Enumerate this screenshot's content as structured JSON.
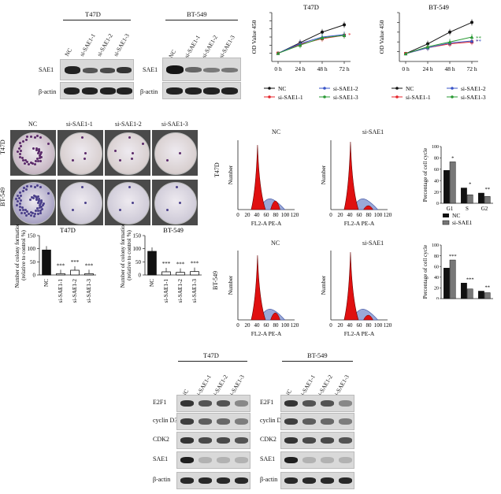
{
  "panelA": {
    "t47d": {
      "title": "T47D",
      "lanes": [
        "NC",
        "si-SAE1-1",
        "si-SAE1-2",
        "si-SAE1-3"
      ],
      "rows": [
        "SAE1",
        "β-actin"
      ]
    },
    "bt549": {
      "title": "BT-549",
      "lanes": [
        "NC",
        "si-SAE1-1",
        "si-SAE1-2",
        "si-SAE1-3"
      ],
      "rows": [
        "SAE1",
        "β-actin"
      ]
    }
  },
  "panelB": {
    "t47d_title": "T47D",
    "bt549_title": "BT-549",
    "ylabel": "OD Value 450",
    "xticks": [
      "0 h",
      "24 h",
      "48 h",
      "72 h"
    ],
    "legend": [
      "NC",
      "si-SAE1-1",
      "si-SAE1-2",
      "si-SAE1-3"
    ],
    "sig_t47d": "*",
    "sig_bt549": [
      "*",
      "**",
      "**"
    ]
  },
  "chart_data": [
    {
      "type": "line",
      "title": "T47D",
      "ylabel": "OD Value 450",
      "categories": [
        "0 h",
        "24 h",
        "48 h",
        "72 h"
      ],
      "ylim": [
        0,
        0.6
      ],
      "series": [
        {
          "name": "NC",
          "values": [
            0.1,
            0.23,
            0.36,
            0.45
          ]
        },
        {
          "name": "si-SAE1-1",
          "values": [
            0.1,
            0.21,
            0.28,
            0.32
          ]
        },
        {
          "name": "si-SAE1-2",
          "values": [
            0.1,
            0.22,
            0.3,
            0.33
          ]
        },
        {
          "name": "si-SAE1-3",
          "values": [
            0.1,
            0.2,
            0.29,
            0.32
          ]
        }
      ]
    },
    {
      "type": "line",
      "title": "BT-549",
      "ylabel": "OD Value 450",
      "categories": [
        "0 h",
        "24 h",
        "48 h",
        "72 h"
      ],
      "ylim": [
        0,
        0.5
      ],
      "series": [
        {
          "name": "NC",
          "values": [
            0.08,
            0.18,
            0.3,
            0.4
          ]
        },
        {
          "name": "si-SAE1-1",
          "values": [
            0.08,
            0.14,
            0.18,
            0.2
          ]
        },
        {
          "name": "si-SAE1-2",
          "values": [
            0.08,
            0.14,
            0.19,
            0.21
          ]
        },
        {
          "name": "si-SAE1-3",
          "values": [
            0.08,
            0.15,
            0.2,
            0.25
          ]
        }
      ]
    },
    {
      "type": "bar",
      "title": "T47D",
      "ylabel": "Number of colony formation (relative to control %)",
      "categories": [
        "NC",
        "si-SAE1-1",
        "si-SAE1-2",
        "si-SAE1-3"
      ],
      "values": [
        95,
        5,
        18,
        5
      ],
      "ylim": [
        0,
        150
      ],
      "significance": [
        "",
        "***",
        "***",
        "***"
      ]
    },
    {
      "type": "bar",
      "title": "BT-549",
      "ylabel": "Number of colony formation (relative to control %)",
      "categories": [
        "NC",
        "si-SAE1-1",
        "si-SAE1-2",
        "si-SAE1-3"
      ],
      "values": [
        90,
        12,
        10,
        13
      ],
      "ylim": [
        0,
        150
      ],
      "significance": [
        "",
        "***",
        "***",
        "***"
      ]
    },
    {
      "type": "bar",
      "ylabel": "Percentage of cell cycle",
      "categories": [
        "G1",
        "S",
        "G2"
      ],
      "ylim": [
        0,
        100
      ],
      "series": [
        {
          "name": "NC",
          "values": [
            58,
            27,
            18
          ]
        },
        {
          "name": "si-SAE1",
          "values": [
            73,
            15,
            12
          ]
        }
      ],
      "significance": [
        "*",
        "*",
        "**"
      ]
    },
    {
      "type": "bar",
      "ylabel": "Percentage of cell cycle",
      "categories": [
        "G1",
        "S",
        "G2"
      ],
      "ylim": [
        0,
        100
      ],
      "series": [
        {
          "name": "NC",
          "values": [
            57,
            29,
            14
          ]
        },
        {
          "name": "si-SAE1",
          "values": [
            72,
            18,
            11
          ]
        }
      ],
      "significance": [
        "***",
        "***",
        "**"
      ]
    }
  ],
  "panelC": {
    "cols": [
      "NC",
      "si-SAE1-1",
      "si-SAE1-2",
      "si-SAE1-3"
    ],
    "rows": [
      "T47D",
      "BT-549"
    ],
    "ylabel_line1": "Number of colony formation",
    "ylabel_line2": "(relative to control %)",
    "yticks": [
      "0",
      "50",
      "100",
      "150"
    ],
    "t47d_title": "T47D",
    "bt549_title": "BT-549",
    "sig": "***"
  },
  "panelD": {
    "col_nc": "NC",
    "col_si": "si-SAE1",
    "row1": "T47D",
    "row2": "BT-549",
    "ylabel": "Number",
    "xlabel": "FL2-A PE-A",
    "xticks": [
      "0",
      "20",
      "40",
      "60",
      "80",
      "100",
      "120"
    ],
    "bars_ylabel": "Percentage of cell cycle",
    "bars_yticks": [
      "0",
      "20",
      "40",
      "60",
      "80",
      "100"
    ],
    "bars_categories": [
      "G1",
      "S",
      "G2"
    ],
    "legend_nc": "NC",
    "legend_si": "si-SAE1"
  },
  "panelE": {
    "t47d": {
      "title": "T47D",
      "lanes": [
        "NC",
        "si-SAE1-1",
        "si-SAE1-2",
        "si-SAE1-3"
      ],
      "rows": [
        "E2F1",
        "cyclin D3",
        "CDK2",
        "SAE1",
        "β-actin"
      ]
    },
    "bt549": {
      "title": "BT-549",
      "lanes": [
        "NC",
        "si-SAE1-1",
        "si-SAE1-2",
        "si-SAE1-3"
      ],
      "rows": [
        "E2F1",
        "cyclin D3",
        "CDK2",
        "SAE1",
        "β-actin"
      ]
    }
  },
  "colors": {
    "nc": "#111111",
    "si1": "#e5252b",
    "si2": "#3a55c8",
    "si3": "#2a9a34",
    "peak": "#e01010",
    "shade": "#9aa8d8"
  }
}
